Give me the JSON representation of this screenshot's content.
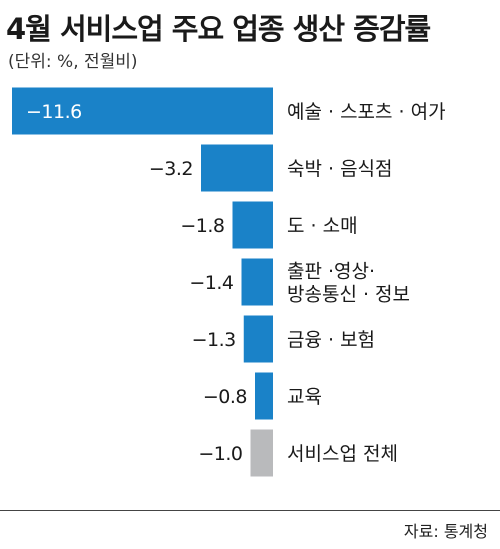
{
  "title": "4월 서비스업 주요 업종 생산 증감률",
  "subtitle": "(단위: %, 전월비)",
  "source": "자료: 통계청",
  "colors": {
    "primary": "#1a82c8",
    "total": "#b9babc"
  },
  "chart_data": {
    "type": "bar",
    "orientation": "horizontal",
    "categories": [
      [
        "예술 · 스포츠 · 여가"
      ],
      [
        "숙박 · 음식점"
      ],
      [
        "도 · 소매"
      ],
      [
        "출판 ·영상·",
        "방송통신 · 정보"
      ],
      [
        "금융 · 보험"
      ],
      [
        "교육"
      ],
      [
        "서비스업 전체"
      ]
    ],
    "values": [
      -11.6,
      -3.2,
      -1.8,
      -1.4,
      -1.3,
      -0.8,
      -1.0
    ],
    "value_labels": [
      "−11.6",
      "−3.2",
      "−1.8",
      "−1.4",
      "−1.3",
      "−0.8",
      "−1.0"
    ],
    "highlight_total_index": 6,
    "xlabel": "",
    "ylabel": "",
    "grid": false,
    "legend": "none"
  }
}
